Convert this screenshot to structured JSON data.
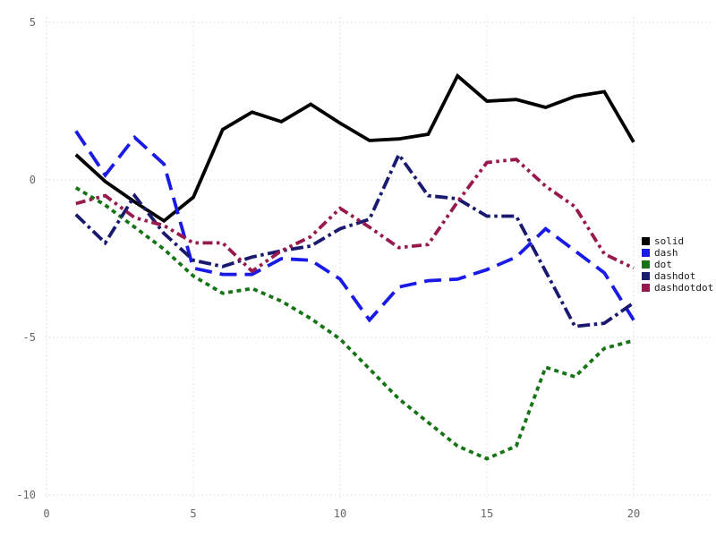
{
  "chart_data": {
    "type": "line",
    "title": "",
    "xlabel": "",
    "ylabel": "",
    "xlim": [
      0,
      20
    ],
    "ylim": [
      -10,
      5
    ],
    "x_ticks": [
      0,
      5,
      10,
      15,
      20
    ],
    "y_ticks": [
      -10,
      -5,
      0,
      5
    ],
    "grid": true,
    "grid_color": "#d9d9d9",
    "tick_label_color": "#666666",
    "legend_position": "right",
    "x": [
      1,
      2,
      3,
      4,
      5,
      6,
      7,
      8,
      9,
      10,
      11,
      12,
      13,
      14,
      15,
      16,
      17,
      18,
      19,
      20
    ],
    "series": [
      {
        "name": "solid",
        "color": "#000000",
        "linestyle": "solid",
        "values": [
          0.8,
          -0.05,
          -0.7,
          -1.3,
          -0.55,
          1.6,
          2.15,
          1.85,
          2.4,
          1.8,
          1.25,
          1.3,
          1.45,
          3.3,
          2.5,
          2.55,
          2.3,
          2.65,
          2.8,
          1.2
        ]
      },
      {
        "name": "dash",
        "color": "#1a1ae8",
        "linestyle": "dash",
        "values": [
          1.55,
          0.15,
          1.35,
          0.5,
          -2.8,
          -3.0,
          -3.0,
          -2.5,
          -2.55,
          -3.15,
          -4.45,
          -3.4,
          -3.2,
          -3.15,
          -2.85,
          -2.45,
          -1.55,
          -2.25,
          -2.95,
          -4.45
        ]
      },
      {
        "name": "dot",
        "color": "#167316",
        "linestyle": "dot",
        "values": [
          -0.25,
          -0.8,
          -1.5,
          -2.2,
          -3.05,
          -3.6,
          -3.45,
          -3.85,
          -4.4,
          -5.05,
          -6.0,
          -6.95,
          -7.7,
          -8.45,
          -8.85,
          -8.45,
          -5.95,
          -6.25,
          -5.35,
          -5.1
        ]
      },
      {
        "name": "dashdot",
        "color": "#191970",
        "linestyle": "dashdot",
        "values": [
          -1.1,
          -2.0,
          -0.5,
          -1.7,
          -2.55,
          -2.75,
          -2.45,
          -2.25,
          -2.1,
          -1.55,
          -1.25,
          0.8,
          -0.5,
          -0.6,
          -1.15,
          -1.15,
          -2.9,
          -4.65,
          -4.55,
          -3.9
        ]
      },
      {
        "name": "dashdotdot",
        "color": "#97194e",
        "linestyle": "dashdotdot",
        "values": [
          -0.75,
          -0.5,
          -1.2,
          -1.45,
          -2.0,
          -2.0,
          -2.9,
          -2.25,
          -1.8,
          -0.9,
          -1.5,
          -2.15,
          -2.05,
          -0.7,
          0.55,
          0.65,
          -0.2,
          -0.85,
          -2.35,
          -2.8
        ]
      }
    ],
    "legend_items": [
      "solid",
      "dash",
      "dot",
      "dashdot",
      "dashdotdot"
    ]
  }
}
